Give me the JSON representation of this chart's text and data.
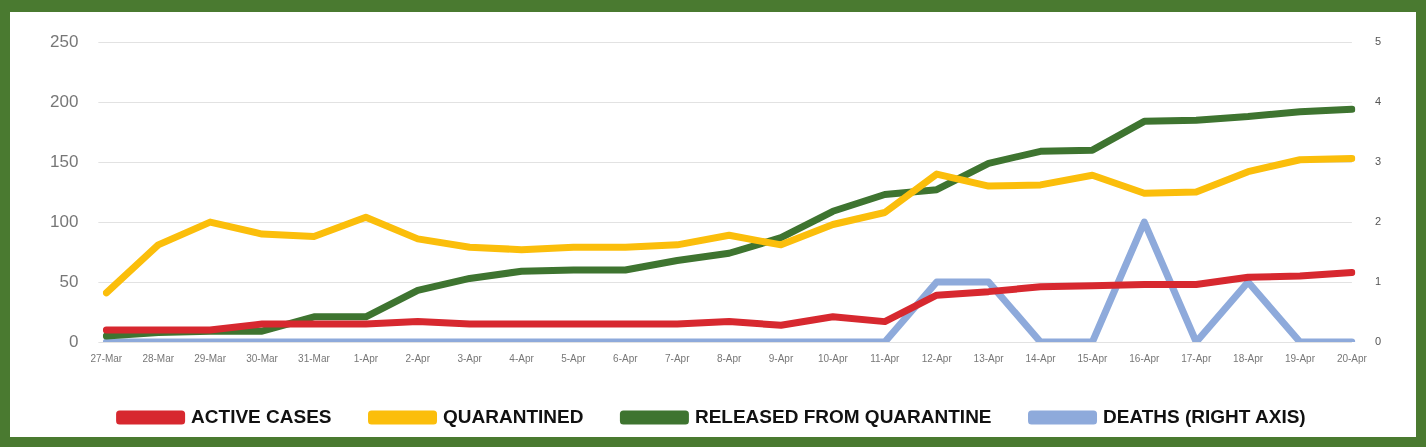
{
  "chart_data": {
    "type": "line",
    "categories": [
      "27-Mar",
      "28-Mar",
      "29-Mar",
      "30-Mar",
      "31-Mar",
      "1-Apr",
      "2-Apr",
      "3-Apr",
      "4-Apr",
      "5-Apr",
      "6-Apr",
      "7-Apr",
      "8-Apr",
      "9-Apr",
      "10-Apr",
      "11-Apr",
      "12-Apr",
      "13-Apr",
      "14-Apr",
      "15-Apr",
      "16-Apr",
      "17-Apr",
      "18-Apr",
      "19-Apr",
      "20-Apr"
    ],
    "series": [
      {
        "name": "ACTIVE CASES",
        "color": "#d7282f",
        "values": [
          10,
          10,
          10,
          15,
          15,
          15,
          17,
          15,
          15,
          15,
          15,
          15,
          17,
          14,
          21,
          17,
          39,
          42,
          46,
          47,
          48,
          48,
          54,
          55,
          58
        ]
      },
      {
        "name": "QUARANTINED",
        "color": "#fbbe0b",
        "values": [
          41,
          81,
          100,
          90,
          88,
          104,
          86,
          79,
          77,
          79,
          79,
          81,
          89,
          81,
          98,
          108,
          140,
          130,
          131,
          139,
          124,
          125,
          142,
          152,
          153
        ]
      },
      {
        "name": "RELEASED FROM QUARANTINE",
        "color": "#3e7430",
        "values": [
          5,
          8,
          9,
          9,
          21,
          21,
          43,
          53,
          59,
          60,
          60,
          68,
          74,
          87,
          109,
          123,
          127,
          149,
          159,
          160,
          184,
          185,
          188,
          192,
          194
        ]
      },
      {
        "name": "DEATHS (RIGHT AXIS)",
        "color": "#8eaadb",
        "axis": "y2",
        "values": [
          0,
          0,
          0,
          0,
          0,
          0,
          0,
          0,
          0,
          0,
          0,
          0,
          0,
          0,
          0,
          0,
          1,
          1,
          0,
          0,
          2,
          0,
          1,
          0,
          0
        ]
      }
    ],
    "ylim": [
      0,
      250
    ],
    "yticks": [
      0,
      50,
      100,
      150,
      200,
      250
    ],
    "y2lim": [
      0,
      5
    ],
    "y2ticks": [
      0,
      1,
      2,
      3,
      4,
      5
    ],
    "grid": "y",
    "legend": "bottom",
    "marker": "none",
    "line_style": "solid"
  }
}
